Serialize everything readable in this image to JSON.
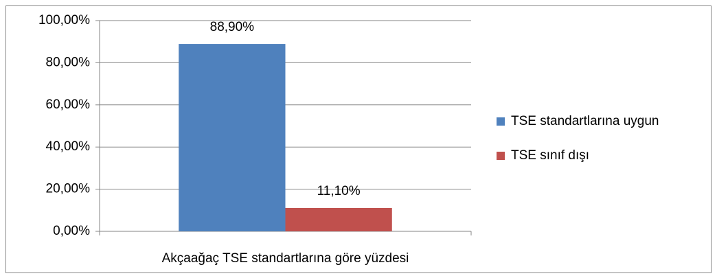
{
  "chart_data": {
    "type": "bar",
    "categories": [
      "Akçaağaç TSE standartlarına göre yüzdesi"
    ],
    "series": [
      {
        "name": "TSE standartlarına uygun",
        "color": "#4f81bd",
        "values": [
          88.9
        ],
        "value_labels": [
          "88,90%"
        ]
      },
      {
        "name": "TSE sınıf dışı",
        "color": "#c0504d",
        "values": [
          11.1
        ],
        "value_labels": [
          "11,10%"
        ]
      }
    ],
    "ylim": [
      0,
      100
    ],
    "yticks": [
      {
        "value": 0,
        "label": "0,00%"
      },
      {
        "value": 20,
        "label": "20,00%"
      },
      {
        "value": 40,
        "label": "40,00%"
      },
      {
        "value": 60,
        "label": "60,00%"
      },
      {
        "value": 80,
        "label": "80,00%"
      },
      {
        "value": 100,
        "label": "100,00%"
      }
    ],
    "grid": true,
    "legend": "right"
  }
}
